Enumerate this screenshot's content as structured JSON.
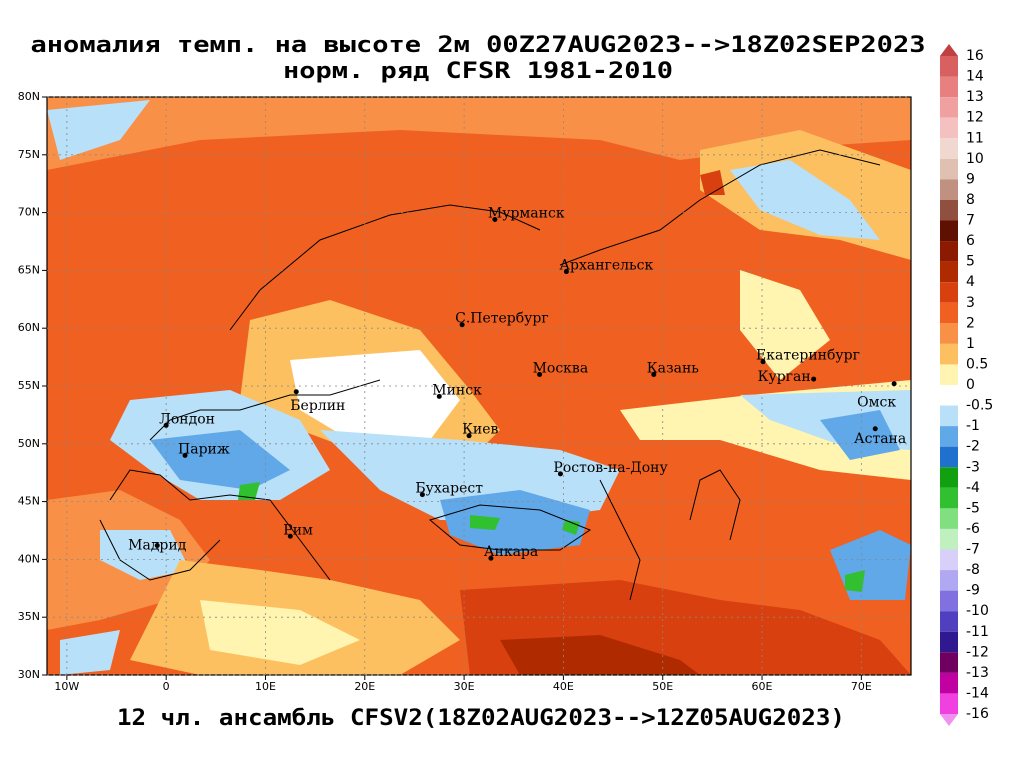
{
  "title": [
    "аномалия темп. на высоте 2м 00Z27AUG2023-->18Z02SEP2023",
    "норм. ряд CFSR 1981-2010"
  ],
  "footer": "12 чл. ансамбль CFSV2(18Z02AUG2023-->12Z05AUG2023)",
  "map": {
    "lonlim": [
      -12,
      75
    ],
    "latlim": [
      30,
      80
    ],
    "lonticks": [
      {
        "value": -10,
        "label": "10W"
      },
      0,
      {
        "value": 10,
        "label": "10E"
      },
      {
        "value": 20,
        "label": "20E"
      },
      {
        "value": 30,
        "label": "30E"
      },
      {
        "value": 40,
        "label": "40E"
      },
      {
        "value": 50,
        "label": "50E"
      },
      {
        "value": 60,
        "label": "60E"
      },
      {
        "value": 70,
        "label": "70E"
      }
    ],
    "latticks": [
      {
        "value": 30,
        "label": "30N"
      },
      {
        "value": 35,
        "label": "35N"
      },
      {
        "value": 40,
        "label": "40N"
      },
      {
        "value": 45,
        "label": "45N"
      },
      {
        "value": 50,
        "label": "50N"
      },
      {
        "value": 55,
        "label": "55N"
      },
      {
        "value": 60,
        "label": "60N"
      },
      {
        "value": 65,
        "label": "65N"
      },
      {
        "value": 70,
        "label": "70N"
      },
      {
        "value": 75,
        "label": "75N"
      },
      {
        "value": 80,
        "label": "80N"
      }
    ],
    "cities": [
      {
        "name": "Мурманск",
        "lon": 33.1,
        "lat": 69.4
      },
      {
        "name": "Архангельск",
        "lon": 40.3,
        "lat": 64.9
      },
      {
        "name": "С.Петербург",
        "lon": 29.8,
        "lat": 60.3
      },
      {
        "name": "Москва",
        "lon": 37.6,
        "lat": 56.0
      },
      {
        "name": "Казань",
        "lon": 49.1,
        "lat": 56.0
      },
      {
        "name": "Екатеринбург",
        "lon": 60.1,
        "lat": 57.1
      },
      {
        "name": "Курган",
        "lon": 65.2,
        "lat": 55.6
      },
      {
        "name": "Омск",
        "lon": 73.3,
        "lat": 55.2
      },
      {
        "name": "Астана",
        "lon": 71.4,
        "lat": 51.3
      },
      {
        "name": "Минск",
        "lon": 27.5,
        "lat": 54.1
      },
      {
        "name": "Берлин",
        "lon": 13.1,
        "lat": 54.5
      },
      {
        "name": "Лондон",
        "lon": 0,
        "lat": 51.6
      },
      {
        "name": "Париж",
        "lon": 1.9,
        "lat": 49.0
      },
      {
        "name": "Киев",
        "lon": 30.5,
        "lat": 50.7
      },
      {
        "name": "Ростов-на-Дону",
        "lon": 39.7,
        "lat": 47.4
      },
      {
        "name": "Бухарест",
        "lon": 25.8,
        "lat": 45.6
      },
      {
        "name": "Рим",
        "lon": 12.5,
        "lat": 42.0
      },
      {
        "name": "Мадрид",
        "lon": -0.9,
        "lat": 41.2
      },
      {
        "name": "Анкара",
        "lon": 32.7,
        "lat": 40.1
      }
    ]
  },
  "colorbar": {
    "levels": [
      16,
      14,
      13,
      12,
      11,
      10,
      9,
      8,
      7,
      6,
      5,
      4,
      3,
      2,
      1,
      0.5,
      0,
      -0.5,
      -1,
      -2,
      -3,
      -4,
      -5,
      -6,
      -7,
      -8,
      -9,
      -10,
      -11,
      -12,
      -13,
      -14,
      -16
    ],
    "colors": [
      "#c04040",
      "#d86060",
      "#e88080",
      "#f0a0a0",
      "#f5c0c0",
      "#f0d8d0",
      "#e0c0b0",
      "#c09080",
      "#905040",
      "#601000",
      "#8c1a00",
      "#b02a00",
      "#d84010",
      "#f06020",
      "#f89048",
      "#fcc060",
      "#fff4b0",
      "#ffffff",
      "#b8e0f8",
      "#60a8e8",
      "#2070d0",
      "#10a010",
      "#30c030",
      "#80e080",
      "#c0f0c0",
      "#d8d0f8",
      "#b0a8f0",
      "#8070e0",
      "#5040c0",
      "#301890",
      "#700060",
      "#c000a0",
      "#f040e0",
      "#f090f0"
    ]
  }
}
